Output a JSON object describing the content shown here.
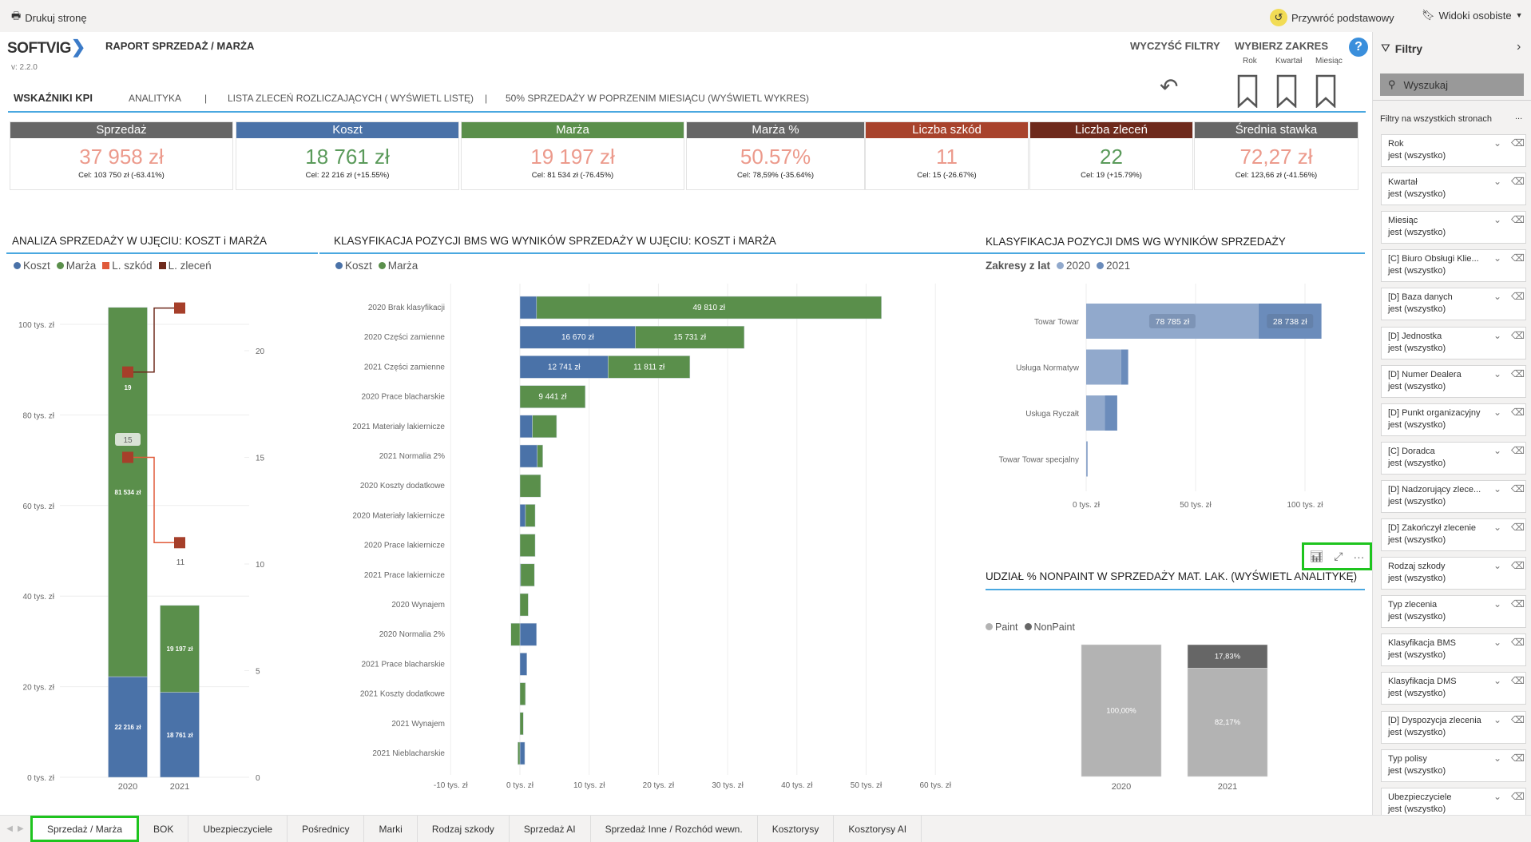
{
  "topbar": {
    "print": "Drukuj stronę",
    "reset": "Przywróć podstawowy",
    "views": "Widoki osobiste"
  },
  "header": {
    "logo": "SOFTVIG",
    "title": "RAPORT SPRZEDAŻ / MARŻA",
    "version": "v: 2.2.0",
    "clear_filters": "WYCZYŚĆ FILTRY",
    "select_range": "WYBIERZ ZAKRES",
    "help": "?",
    "range": [
      "Rok",
      "Kwartał",
      "Miesiąc"
    ]
  },
  "nav": {
    "items": [
      "WSKAŹNIKI  KPI",
      "ANALITYKA",
      "|",
      "LISTA ZLECEŃ ROZLICZAJĄCYCH ( WYŚWIETL LISTĘ)",
      "|",
      "50% SPRZEDAŻY W POPRZENIM MIESIĄCU (WYŚWIETL WYKRES)"
    ]
  },
  "kpis": [
    {
      "label": "Sprzedaż",
      "value": "37 958 zł",
      "target": "Cel: 103 750 zł (-63.41%)",
      "header_color": "#666666",
      "value_color": "#ec9a8c"
    },
    {
      "label": "Koszt",
      "value": "18 761 zł",
      "target": "Cel: 22 216 zł (+15.55%)",
      "header_color": "#4a72a8",
      "value_color": "#5a9a5a"
    },
    {
      "label": "Marża",
      "value": "19 197 zł",
      "target": "Cel: 81 534 zł (-76.45%)",
      "header_color": "#5a8f4b",
      "value_color": "#ec9a8c"
    },
    {
      "label": "Marża %",
      "value": "50.57%",
      "target": "Cel: 78,59% (-35.64%)",
      "header_color": "#666666",
      "value_color": "#ec9a8c"
    },
    {
      "label": "Liczba szkód",
      "value": "11",
      "target": "Cel: 15 (-26.67%)",
      "header_color": "#a8432c",
      "value_color": "#ec9a8c"
    },
    {
      "label": "Liczba zleceń",
      "value": "22",
      "target": "Cel: 19 (+15.79%)",
      "header_color": "#6e2a1c",
      "value_color": "#5a9a5a"
    },
    {
      "label": "Średnia stawka",
      "value": "72,27 zł",
      "target": "Cel: 123,66 zł (-41.56%)",
      "header_color": "#666666",
      "value_color": "#ec9a8c"
    }
  ],
  "chart_data": [
    {
      "type": "bar",
      "title": "ANALIZA SPRZEDAŻY W UJĘCIU: KOSZT i MARŻA",
      "stacked": true,
      "categories": [
        "2020",
        "2021"
      ],
      "legend": [
        "Koszt",
        "Marża",
        "L. szkód",
        "L. zleceń"
      ],
      "colors": {
        "Koszt": "#4a72a8",
        "Marża": "#5a8f4b",
        "L. szkód": "#e05a3a",
        "L. zleceń": "#6e2a1c"
      },
      "series": [
        {
          "name": "Koszt",
          "values": [
            22216,
            18761
          ],
          "labels": [
            "22 216 zł",
            "18 761 zł"
          ]
        },
        {
          "name": "Marża",
          "values": [
            81534,
            19197
          ],
          "labels": [
            "81 534 zł",
            "19 197 zł"
          ]
        }
      ],
      "line_series": [
        {
          "name": "L. szkód",
          "values": [
            15,
            11
          ],
          "labels": [
            "15",
            "11"
          ]
        },
        {
          "name": "L. zleceń",
          "values": [
            19,
            22
          ],
          "labels": [
            "19",
            ""
          ]
        }
      ],
      "ylim": [
        0,
        100000
      ],
      "yticks": [
        "0 tys. zł",
        "20 tys. zł",
        "40 tys. zł",
        "60 tys. zł",
        "80 tys. zł",
        "100 tys. zł"
      ],
      "y2lim": [
        0,
        20
      ],
      "y2ticks": [
        "0",
        "5",
        "10",
        "15",
        "20"
      ],
      "grid": true,
      "legend_position": "top-left"
    },
    {
      "type": "bar",
      "orientation": "horizontal",
      "stacked": true,
      "title": "KLASYFIKACJA POZYCJI BMS WG WYNIKÓW SPRZEDAŻY W UJĘCIU: KOSZT i MARŻA",
      "legend": [
        "Koszt",
        "Marża"
      ],
      "categories": [
        "2020 Brak klasyfikacji",
        "2020 Części zamienne",
        "2021 Części zamienne",
        "2020 Prace blacharskie",
        "2021 Materiały lakiernicze",
        "2021 Normalia 2%",
        "2020 Koszty dodatkowe",
        "2020 Materiały lakiernicze",
        "2020 Prace lakiernicze",
        "2021 Prace lakiernicze",
        "2020 Wynajem",
        "2020 Normalia 2%",
        "2021 Prace blacharskie",
        "2021 Koszty dodatkowe",
        "2021 Wynajem",
        "2021 Nieblacharskie"
      ],
      "series": [
        {
          "name": "Koszt",
          "values": [
            2400,
            16670,
            12741,
            0,
            1800,
            2500,
            0,
            800,
            0,
            100,
            0,
            2400,
            1000,
            0,
            0,
            700
          ],
          "labels": [
            "",
            "16 670 zł",
            "12 741 zł",
            "",
            "",
            "",
            "",
            "",
            "",
            "",
            "",
            "",
            "",
            "",
            "",
            ""
          ]
        },
        {
          "name": "Marża",
          "values": [
            49810,
            15731,
            11811,
            9441,
            3500,
            800,
            3000,
            1400,
            2200,
            2000,
            1200,
            -1300,
            0,
            800,
            500,
            -300
          ],
          "labels": [
            "49 810 zł",
            "15 731 zł",
            "11 811 zł",
            "9 441 zł",
            "",
            "",
            "",
            "",
            "",
            "",
            "",
            "",
            "",
            "",
            "",
            ""
          ]
        }
      ],
      "xlim": [
        -10000,
        60000
      ],
      "xticks": [
        "-10 tys. zł",
        "0 tys. zł",
        "10 tys. zł",
        "20 tys. zł",
        "30 tys. zł",
        "40 tys. zł",
        "50 tys. zł",
        "60 tys. zł"
      ],
      "grid": true,
      "legend_position": "top-left"
    },
    {
      "type": "bar",
      "orientation": "horizontal",
      "stacked": true,
      "title": "KLASYFIKACJA POZYCJI DMS WG WYNIKÓW SPRZEDAŻY",
      "legend_title": "Zakresy z lat",
      "legend": [
        "2020",
        "2021"
      ],
      "colors": {
        "2020": "#91a9cc",
        "2021": "#6b8cbb"
      },
      "categories": [
        "Towar Towar",
        "Usługa Normatyw",
        "Usługa Ryczałt",
        "Towar Towar specjalny"
      ],
      "series": [
        {
          "name": "2020",
          "values": [
            78785,
            16000,
            8500,
            700
          ],
          "labels": [
            "78 785 zł",
            "",
            "",
            ""
          ]
        },
        {
          "name": "2021",
          "values": [
            28738,
            3200,
            5700,
            0
          ],
          "labels": [
            "28 738 zł",
            "",
            "",
            ""
          ]
        }
      ],
      "xlim": [
        0,
        120000
      ],
      "xticks": [
        "0 tys. zł",
        "50 tys. zł",
        "100 tys. zł"
      ],
      "grid": true,
      "legend_position": "top-left"
    },
    {
      "type": "bar",
      "stacked": true,
      "percent": true,
      "title": "UDZIAŁ % NONPAINT W SPRZEDAŻY MAT. LAK. (WYŚWIETL ANALITYKĘ)",
      "legend": [
        "Paint",
        "NonPaint"
      ],
      "colors": {
        "Paint": "#b3b3b3",
        "NonPaint": "#666666"
      },
      "categories": [
        "2020",
        "2021"
      ],
      "series": [
        {
          "name": "Paint",
          "values": [
            100,
            82.17
          ],
          "labels": [
            "100,00%",
            "82,17%"
          ]
        },
        {
          "name": "NonPaint",
          "values": [
            0,
            17.83
          ],
          "labels": [
            "",
            "17,83%"
          ]
        }
      ],
      "ylim": [
        0,
        100
      ],
      "legend_position": "top-left"
    }
  ],
  "visual_toolbar": {
    "icons": [
      "analytics-icon",
      "focus-mode-icon",
      "more-options-icon"
    ],
    "more": "···"
  },
  "filters": {
    "title": "Filtry",
    "search_placeholder": "Wyszukaj",
    "section": "Filtry na wszystkich stronach",
    "section_more": "...",
    "items": [
      {
        "name": "Rok",
        "value": "jest (wszystko)"
      },
      {
        "name": "Kwartał",
        "value": "jest (wszystko)"
      },
      {
        "name": "Miesiąc",
        "value": "jest (wszystko)"
      },
      {
        "name": "[C] Biuro Obsługi Klie...",
        "value": "jest (wszystko)"
      },
      {
        "name": "[D] Baza danych",
        "value": "jest (wszystko)"
      },
      {
        "name": "[D] Jednostka",
        "value": "jest (wszystko)"
      },
      {
        "name": "[D] Numer Dealera",
        "value": "jest (wszystko)"
      },
      {
        "name": "[D] Punkt organizacyjny",
        "value": "jest (wszystko)"
      },
      {
        "name": "[C] Doradca",
        "value": "jest (wszystko)"
      },
      {
        "name": "[D] Nadzorujący zlece...",
        "value": "jest (wszystko)"
      },
      {
        "name": "[D] Zakończył zlecenie",
        "value": "jest (wszystko)"
      },
      {
        "name": "Rodzaj szkody",
        "value": "jest (wszystko)"
      },
      {
        "name": "Typ zlecenia",
        "value": "jest (wszystko)"
      },
      {
        "name": "Klasyfikacja BMS",
        "value": "jest (wszystko)"
      },
      {
        "name": "Klasyfikacja DMS",
        "value": "jest (wszystko)"
      },
      {
        "name": "[D] Dyspozycja zlecenia",
        "value": "jest (wszystko)"
      },
      {
        "name": "Typ polisy",
        "value": "jest (wszystko)"
      },
      {
        "name": "Ubezpieczyciele",
        "value": "jest (wszystko)"
      }
    ]
  },
  "tabs": {
    "active": 0,
    "items": [
      "Sprzedaż / Marża",
      "BOK",
      "Ubezpieczyciele",
      "Pośrednicy",
      "Marki",
      "Rodzaj szkody",
      "Sprzedaż AI",
      "Sprzedaż Inne / Rozchód wewn.",
      "Kosztorysy",
      "Kosztorysy AI"
    ]
  },
  "colors": {
    "accent_line": "#4aa8e0",
    "highlight": "#1ec41e"
  }
}
